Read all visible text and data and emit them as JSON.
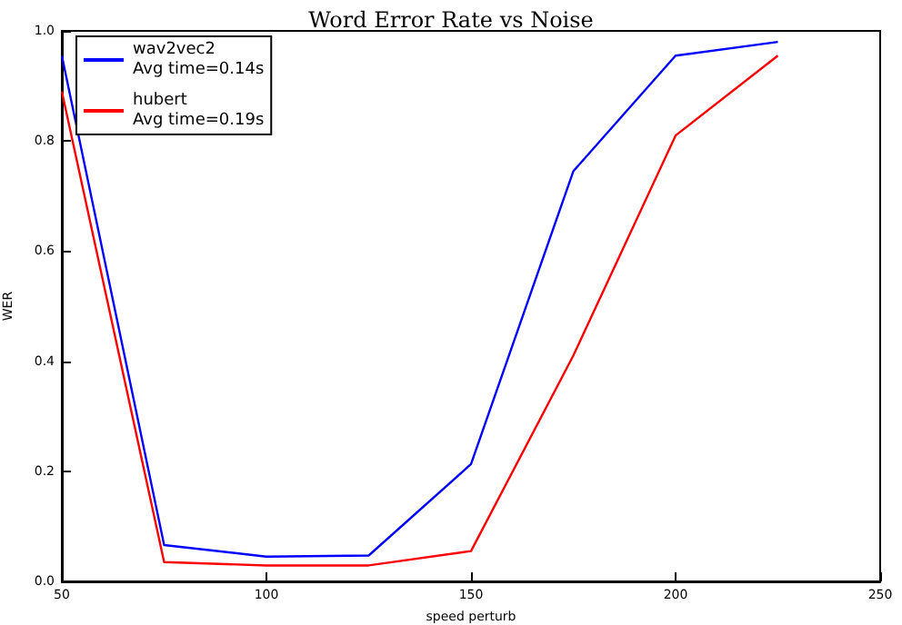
{
  "chart_data": {
    "type": "line",
    "title": "Word Error Rate vs Noise",
    "xlabel": "speed perturb",
    "ylabel": "WER",
    "x": [
      50,
      75,
      100,
      125,
      150,
      175,
      200,
      225
    ],
    "series": [
      {
        "name": "wav2vec2\nAvg time=0.14s",
        "color": "#0000ff",
        "values": [
          0.955,
          0.066,
          0.045,
          0.047,
          0.213,
          0.745,
          0.955,
          0.98
        ]
      },
      {
        "name": "hubert\nAvg time=0.19s",
        "color": "#ff0000",
        "values": [
          0.89,
          0.035,
          0.029,
          0.029,
          0.055,
          0.41,
          0.81,
          0.955
        ]
      }
    ],
    "xlim": [
      50,
      250
    ],
    "xticks": [
      50,
      100,
      150,
      200,
      250
    ],
    "ylim": [
      0,
      1
    ],
    "yticks": [
      {
        "value": 0,
        "label": "0.0"
      },
      0.2,
      0.4,
      0.6,
      0.8,
      {
        "value": 1,
        "label": "1.0"
      }
    ],
    "grid": false,
    "legend": "top left",
    "marker": "none",
    "line_style": "solid"
  }
}
